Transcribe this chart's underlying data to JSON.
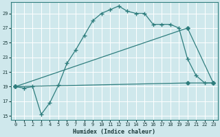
{
  "xlabel": "Humidex (Indice chaleur)",
  "bg_color": "#cfe8ec",
  "grid_color": "#ffffff",
  "line_color": "#2e7d7d",
  "xlim": [
    -0.5,
    23.5
  ],
  "ylim": [
    14.5,
    30.5
  ],
  "yticks": [
    15,
    17,
    19,
    21,
    23,
    25,
    27,
    29
  ],
  "xticks": [
    0,
    1,
    2,
    3,
    4,
    5,
    6,
    7,
    8,
    9,
    10,
    11,
    12,
    13,
    14,
    15,
    16,
    17,
    18,
    19,
    20,
    21,
    22,
    23
  ],
  "line1_x": [
    0,
    1,
    2,
    3,
    4,
    5,
    6,
    7,
    8,
    9,
    10,
    11,
    12,
    13,
    14,
    15,
    16,
    17,
    18,
    19,
    20,
    21,
    22,
    23
  ],
  "line1_y": [
    19,
    18.8,
    19.0,
    15.2,
    16.8,
    19.2,
    22.2,
    24.0,
    26.0,
    28.0,
    29.0,
    29.5,
    30.0,
    29.3,
    29.0,
    29.0,
    27.5,
    27.5,
    27.5,
    27.0,
    22.8,
    20.5,
    19.5,
    19.5
  ],
  "line2_x": [
    0,
    20,
    23
  ],
  "line2_y": [
    19,
    27.0,
    19.5
  ],
  "line3_x": [
    0,
    20,
    23
  ],
  "line3_y": [
    19,
    19.5,
    19.5
  ]
}
